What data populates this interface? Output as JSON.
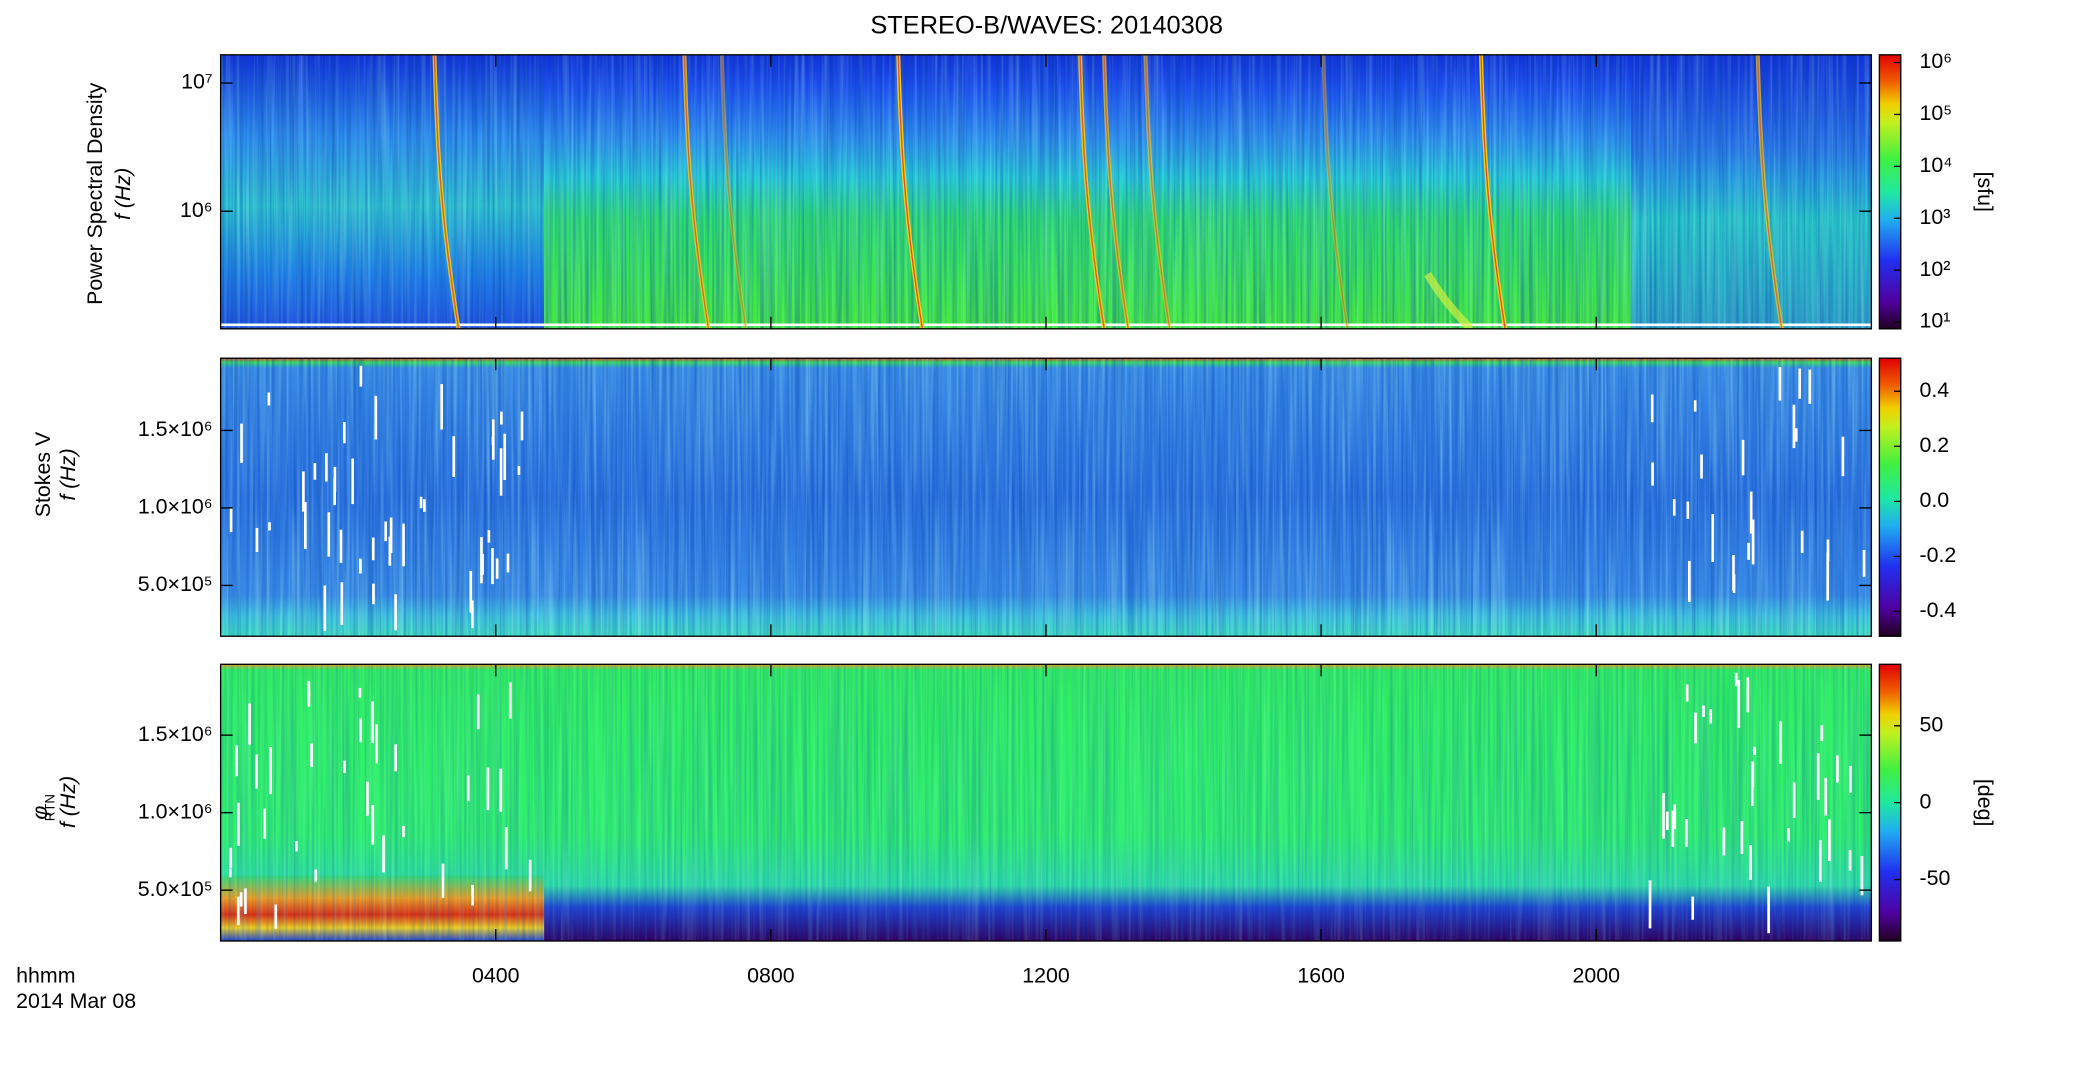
{
  "title": "STEREO-B/WAVES: 20140308",
  "x_label": "hhmm",
  "date_label": "2014 Mar 08",
  "chart_data": [
    {
      "type": "heatmap",
      "ylabel": [
        "Power Spectral Density",
        "f (Hz)"
      ],
      "xlim": [
        0,
        24
      ],
      "xticks": [
        4,
        8,
        12,
        16,
        20
      ],
      "ylim": [
        121000,
        16600000
      ],
      "ylog": true,
      "yticks": [
        {
          "value": 1000000,
          "label": "10⁶"
        },
        {
          "value": 10000000,
          "label": "10⁷"
        }
      ],
      "colorbar": {
        "label": "[sfu]",
        "lim": [
          7.4,
          1410000
        ],
        "log": true,
        "colormap": "rainbow",
        "ticks": [
          {
            "value": 10,
            "label": "10¹"
          },
          {
            "value": 100,
            "label": "10²"
          },
          {
            "value": 1000,
            "label": "10³"
          },
          {
            "value": 10000,
            "label": "10⁴"
          },
          {
            "value": 100000,
            "label": "10⁵"
          },
          {
            "value": 1000000,
            "label": "10⁶"
          }
        ]
      }
    },
    {
      "type": "heatmap",
      "ylabel": [
        "Stokes V",
        "f (Hz)"
      ],
      "xlim": [
        0,
        24
      ],
      "xticks": [
        4,
        8,
        12,
        16,
        20
      ],
      "ylim": [
        172000,
        1966000
      ],
      "ylog": false,
      "yticks": [
        {
          "value": 500000,
          "label": "5.0×10⁵"
        },
        {
          "value": 1000000,
          "label": "1.0×10⁶"
        },
        {
          "value": 1500000,
          "label": "1.5×10⁶"
        }
      ],
      "colorbar": {
        "lim": [
          -0.49,
          0.52
        ],
        "log": false,
        "colormap": "rainbow",
        "ticks": [
          -0.4,
          -0.2,
          {
            "value": 0,
            "label": "0.0"
          },
          0.2,
          0.4
        ]
      }
    },
    {
      "type": "heatmap",
      "ylabel_symbol": "φ",
      "ylabel_subscript": "RTN",
      "ylabel": [
        "f (Hz)"
      ],
      "xlim": [
        0,
        24
      ],
      "xticks": [
        {
          "value": 4,
          "label": "0400"
        },
        {
          "value": 8,
          "label": "0800"
        },
        {
          "value": 12,
          "label": "1200"
        },
        {
          "value": 16,
          "label": "1600"
        },
        {
          "value": 20,
          "label": "2000"
        }
      ],
      "ylim": [
        172000,
        1957000
      ],
      "ylog": false,
      "yticks": [
        {
          "value": 500000,
          "label": "5.0×10⁵"
        },
        {
          "value": 1000000,
          "label": "1.0×10⁶"
        },
        {
          "value": 1500000,
          "label": "1.5×10⁶"
        }
      ],
      "colorbar": {
        "label": "[deg]",
        "lim": [
          -90,
          90
        ],
        "log": false,
        "colormap": "rainbow",
        "ticks": [
          -50,
          0,
          50
        ]
      }
    }
  ]
}
